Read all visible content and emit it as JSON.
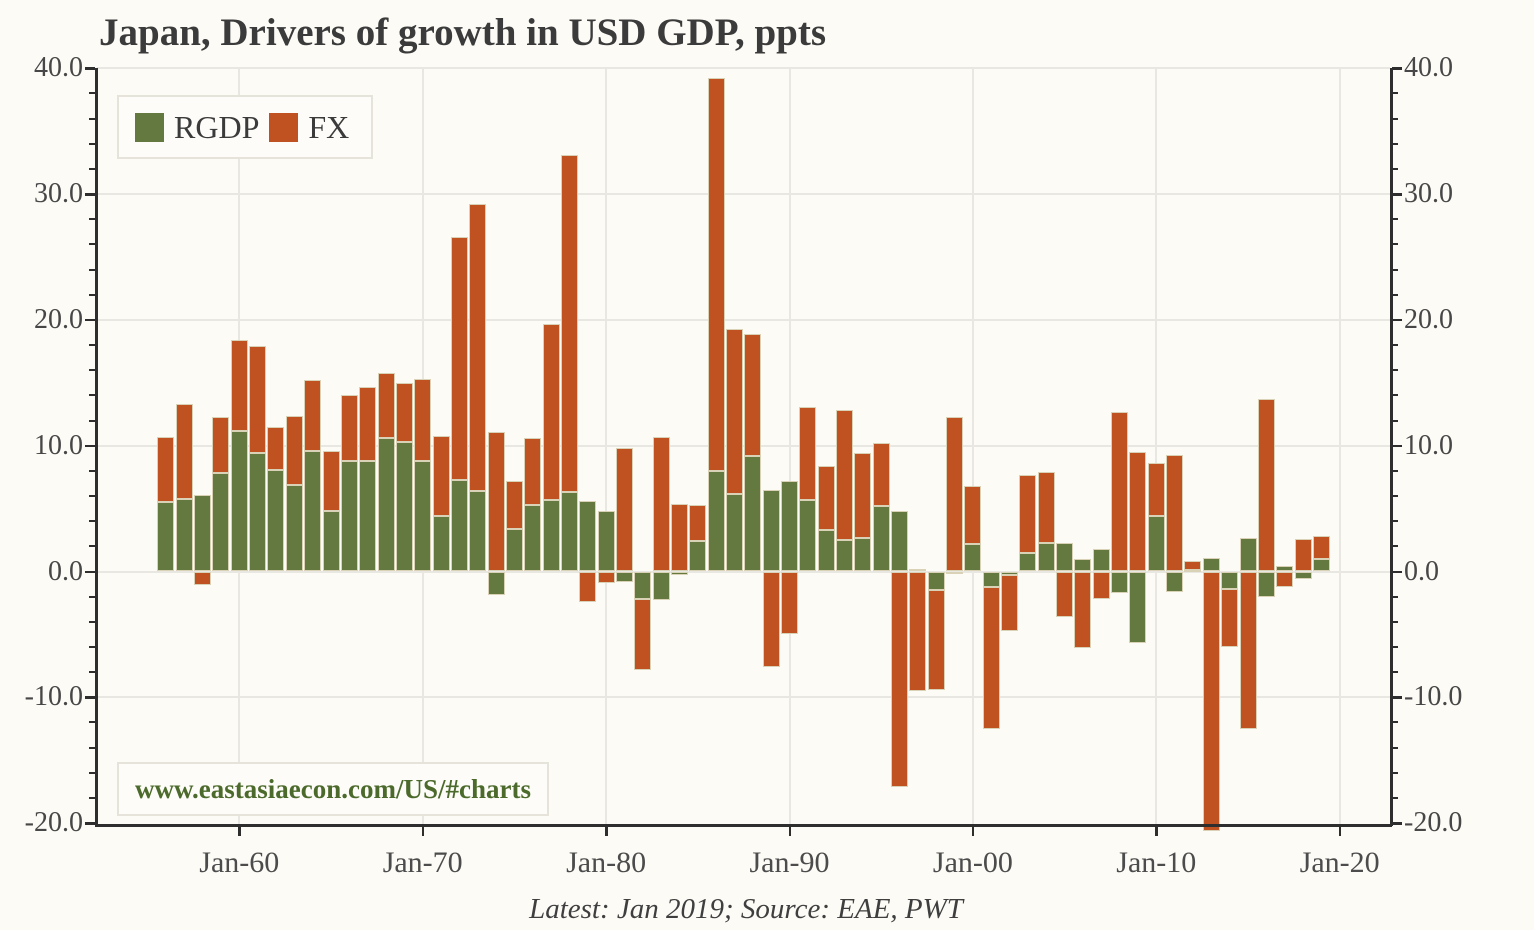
{
  "title": "Japan, Drivers of growth in USD GDP, ppts",
  "footer": "Latest: Jan 2019; Source: EAE, PWT",
  "watermark": "www.eastasiaecon.com/US/#charts",
  "legend": {
    "items": [
      {
        "label": "RGDP",
        "color": "#64793f"
      },
      {
        "label": "FX",
        "color": "#c05120"
      }
    ]
  },
  "axes": {
    "y_tick_values": [
      40,
      30,
      20,
      10,
      0,
      -10,
      -20
    ],
    "y_tick_labels": [
      "40.0",
      "30.0",
      "20.0",
      "10.0",
      "0.0",
      "-10.0",
      "-20.0"
    ],
    "x_tick_years": [
      1960,
      1970,
      1980,
      1990,
      2000,
      2010,
      2020
    ],
    "x_tick_labels": [
      "Jan-60",
      "Jan-70",
      "Jan-80",
      "Jan-90",
      "Jan-00",
      "Jan-10",
      "Jan-20"
    ]
  },
  "colors": {
    "rgdp": "#64793f",
    "fx": "#c05120",
    "grid": "#e9e7e1",
    "spine": "#2e2e2e",
    "bar_edge": "#d9d2b6"
  },
  "chart_data": {
    "type": "bar",
    "stacked": true,
    "title": "Japan, Drivers of growth in USD GDP, ppts",
    "xlabel": "",
    "ylabel": "ppts",
    "ylim": [
      -20,
      40
    ],
    "y_major_step": 10,
    "y_minor_step": 2,
    "grid": true,
    "legend_position": "top-left",
    "x": [
      1956,
      1957,
      1958,
      1959,
      1960,
      1961,
      1962,
      1963,
      1964,
      1965,
      1966,
      1967,
      1968,
      1969,
      1970,
      1971,
      1972,
      1973,
      1974,
      1975,
      1976,
      1977,
      1978,
      1979,
      1980,
      1981,
      1982,
      1983,
      1984,
      1985,
      1986,
      1987,
      1988,
      1989,
      1990,
      1991,
      1992,
      1993,
      1994,
      1995,
      1996,
      1997,
      1998,
      1999,
      2000,
      2001,
      2002,
      2003,
      2004,
      2005,
      2006,
      2007,
      2008,
      2009,
      2010,
      2011,
      2012,
      2013,
      2014,
      2015,
      2016,
      2017,
      2018,
      2019
    ],
    "series": [
      {
        "name": "RGDP",
        "color": "#64793f",
        "values": [
          5.5,
          5.8,
          6.1,
          7.8,
          11.2,
          9.4,
          8.1,
          6.9,
          9.6,
          4.8,
          8.8,
          8.8,
          10.6,
          10.3,
          8.8,
          4.4,
          7.3,
          6.4,
          -1.9,
          3.4,
          5.3,
          5.7,
          6.3,
          5.6,
          4.8,
          -0.8,
          -2.2,
          -2.3,
          -0.3,
          2.4,
          8.0,
          6.2,
          9.2,
          6.5,
          7.2,
          5.7,
          3.3,
          2.5,
          2.7,
          5.2,
          4.8,
          0.2,
          -1.5,
          -0.2,
          2.2,
          -1.2,
          -0.3,
          1.5,
          2.3,
          2.3,
          1.0,
          1.8,
          -1.7,
          -5.7,
          4.4,
          -1.6,
          0.1,
          1.1,
          -1.4,
          2.7,
          -2.0,
          0.4,
          -0.6,
          1.0
        ]
      },
      {
        "name": "FX",
        "color": "#c05120",
        "values": [
          5.2,
          7.5,
          -1.1,
          4.5,
          7.2,
          8.5,
          3.4,
          5.5,
          5.6,
          4.8,
          5.2,
          5.9,
          5.2,
          4.7,
          6.5,
          6.4,
          19.3,
          22.8,
          11.1,
          3.8,
          5.3,
          14.0,
          26.8,
          -2.4,
          -0.9,
          9.8,
          -5.6,
          10.7,
          5.4,
          2.9,
          31.2,
          13.1,
          9.7,
          -7.6,
          -5.0,
          7.4,
          5.1,
          10.3,
          6.7,
          5.0,
          -17.1,
          -9.5,
          -7.9,
          12.3,
          4.6,
          -11.3,
          -4.4,
          6.2,
          5.6,
          -3.6,
          -6.1,
          -2.2,
          12.7,
          9.5,
          4.2,
          9.3,
          0.7,
          -20.6,
          -4.6,
          -12.5,
          13.7,
          -1.2,
          2.6,
          1.8
        ]
      }
    ]
  }
}
